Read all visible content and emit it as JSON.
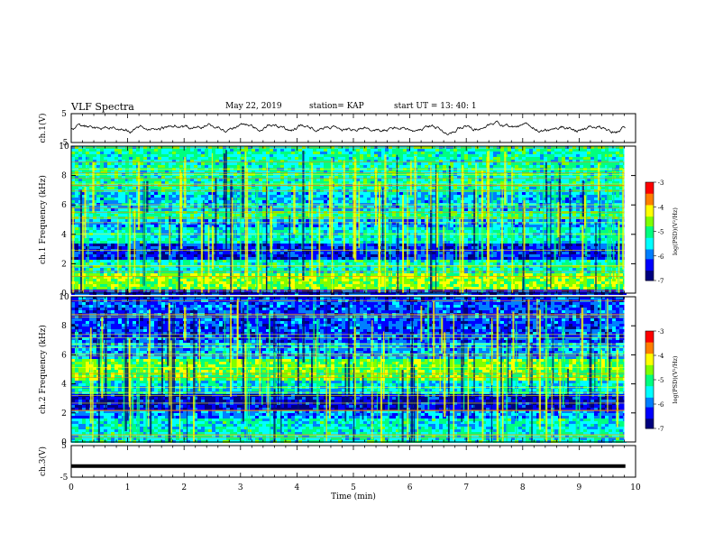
{
  "header": {
    "title": "VLF Spectra",
    "date": "May 22, 2019",
    "station": "station= KAP",
    "start_time": "start  UT =   13: 40: 1"
  },
  "chart_data": [
    {
      "type": "line",
      "panel": "ch1-waveform",
      "ylabel": "ch.1(V)",
      "ylim": [
        -5,
        5
      ],
      "ytick_labels": [
        "5",
        "-5"
      ],
      "trace_description": "noisy voltage trace oscillating roughly between -2 and +2 V",
      "color": "#000000"
    },
    {
      "type": "heatmap",
      "panel": "ch1-spectrogram",
      "ylabel": "ch.1 Frequency (kHz)",
      "ylim": [
        0,
        10
      ],
      "ytick_labels": [
        "0",
        "2",
        "4",
        "6",
        "8",
        "10"
      ],
      "colorbar": {
        "label": "log(PSD)(V²/Hz)",
        "range": [
          -7,
          -3
        ],
        "tick_labels": [
          "-3",
          "-4",
          "-5",
          "-6",
          "-7"
        ]
      }
    },
    {
      "type": "heatmap",
      "panel": "ch2-spectrogram",
      "ylabel": "ch.2 Frequency (kHz)",
      "ylim": [
        0,
        10
      ],
      "ytick_labels": [
        "0",
        "2",
        "4",
        "6",
        "8",
        "10"
      ],
      "colorbar": {
        "label": "log(PSD)(V²/Hz)",
        "range": [
          -7,
          -3
        ],
        "tick_labels": [
          "-3",
          "-4",
          "-5",
          "-6",
          "-7"
        ]
      }
    },
    {
      "type": "line",
      "panel": "ch3-waveform",
      "ylabel": "ch.3(V)",
      "ylim": [
        -5,
        5
      ],
      "ytick_labels": [
        "5",
        "-5"
      ],
      "constant_value": -1.5,
      "color": "#000000"
    }
  ],
  "xaxis": {
    "label": "Time (min)",
    "xlim": [
      0,
      10
    ],
    "tick_labels": [
      "0",
      "1",
      "2",
      "3",
      "4",
      "5",
      "6",
      "7",
      "8",
      "9",
      "10"
    ]
  },
  "colors": {
    "spectrum": [
      "#00007f",
      "#0000ff",
      "#007fff",
      "#00ffff",
      "#00ff7f",
      "#7fff00",
      "#ffff00",
      "#ff7f00",
      "#ff0000",
      "#ffffff"
    ]
  }
}
